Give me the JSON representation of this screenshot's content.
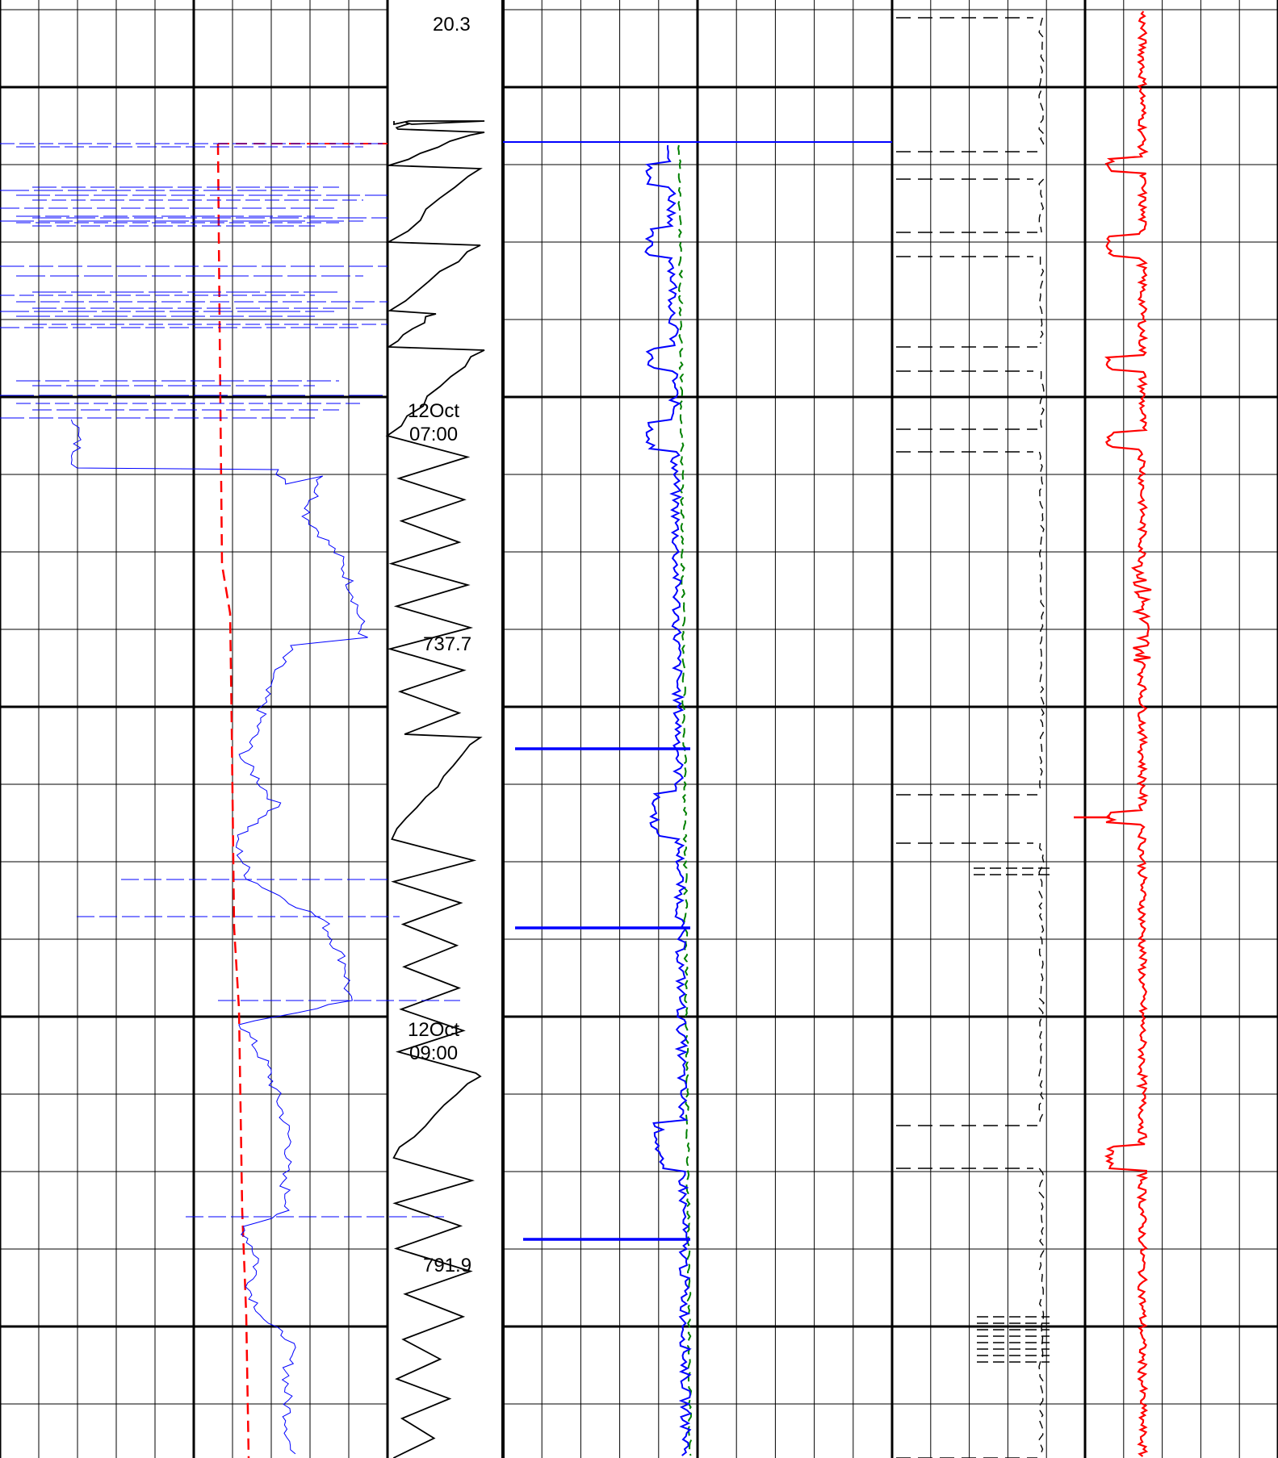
{
  "chart_data": {
    "type": "line",
    "title": "",
    "depth_labels": [
      {
        "text": "20.3"
      },
      {
        "text": "737.7"
      },
      {
        "text": "791.9"
      }
    ],
    "time_labels": [
      {
        "day": "12Oct",
        "time": "07:00"
      },
      {
        "day": "12Oct",
        "time": "09:00"
      }
    ],
    "tracks": [
      {
        "id": "track-1",
        "series": [
          {
            "name": "",
            "color": "#0000ff",
            "style": "dash-fine"
          },
          {
            "name": "",
            "color": "#ff0000",
            "style": "dash"
          }
        ]
      },
      {
        "id": "depth-track",
        "series": [
          {
            "name": "",
            "color": "#000000",
            "style": "solid"
          }
        ]
      },
      {
        "id": "track-2",
        "series": [
          {
            "name": "",
            "color": "#0000ff",
            "style": "solid"
          },
          {
            "name": "",
            "color": "#008000",
            "style": "dash"
          }
        ]
      },
      {
        "id": "track-3",
        "series": [
          {
            "name": "",
            "color": "#000000",
            "style": "dash"
          },
          {
            "name": "",
            "color": "#ff0000",
            "style": "solid"
          }
        ]
      }
    ],
    "grid": true
  }
}
